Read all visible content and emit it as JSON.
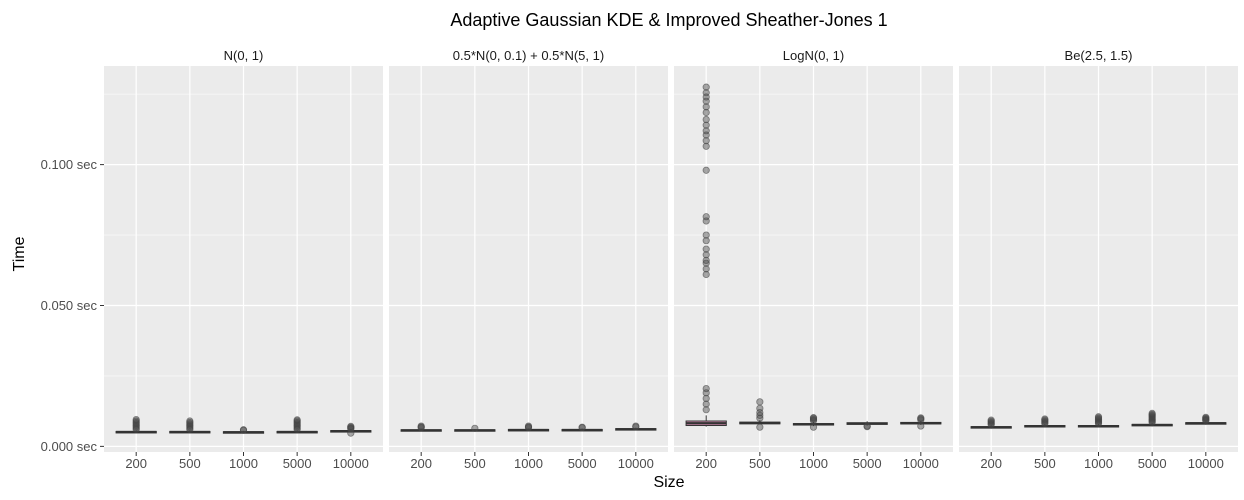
{
  "chart_data": {
    "type": "boxplot",
    "title": "Adaptive Gaussian KDE & Improved Sheather-Jones 1",
    "xlabel": "Size",
    "ylabel": "Time",
    "categories": [
      "200",
      "500",
      "1000",
      "5000",
      "10000"
    ],
    "y_ticks": [
      {
        "value": 0.0,
        "label": "0.000 sec"
      },
      {
        "value": 0.05,
        "label": "0.050 sec"
      },
      {
        "value": 0.1,
        "label": "0.100 sec"
      }
    ],
    "ylim": [
      -0.002,
      0.135
    ],
    "grid": true,
    "colors": {
      "panel_bg": "#ebebeb",
      "grid_major": "#ffffff",
      "box_fill": "#d98fb4",
      "box_line": "#333333",
      "outlier": "#444444"
    },
    "panels": [
      {
        "label": "N(0, 1)",
        "boxes": [
          {
            "q1": 0.0049,
            "median": 0.0051,
            "q3": 0.0053,
            "wmin": 0.0047,
            "wmax": 0.0057,
            "outliers": [
              0.006,
              0.0065,
              0.007,
              0.0075,
              0.008,
              0.0085,
              0.009,
              0.0095
            ]
          },
          {
            "q1": 0.0049,
            "median": 0.0051,
            "q3": 0.0053,
            "wmin": 0.0047,
            "wmax": 0.0057,
            "outliers": [
              0.006,
              0.0065,
              0.007,
              0.0075,
              0.008,
              0.0085,
              0.009
            ]
          },
          {
            "q1": 0.0049,
            "median": 0.005,
            "q3": 0.0052,
            "wmin": 0.0047,
            "wmax": 0.0055,
            "outliers": [
              0.0057,
              0.0059
            ]
          },
          {
            "q1": 0.0049,
            "median": 0.0051,
            "q3": 0.0053,
            "wmin": 0.0047,
            "wmax": 0.0057,
            "outliers": [
              0.006,
              0.0065,
              0.007,
              0.0075,
              0.008,
              0.0085,
              0.009,
              0.0094
            ]
          },
          {
            "q1": 0.0052,
            "median": 0.0054,
            "q3": 0.0056,
            "wmin": 0.0049,
            "wmax": 0.006,
            "outliers": [
              0.0047,
              0.0062,
              0.0065,
              0.0068,
              0.0071
            ]
          }
        ]
      },
      {
        "label": "0.5*N(0, 0.1) + 0.5*N(5, 1)",
        "boxes": [
          {
            "q1": 0.0055,
            "median": 0.0057,
            "q3": 0.0059,
            "wmin": 0.0053,
            "wmax": 0.0063,
            "outliers": [
              0.0066,
              0.0069,
              0.0072
            ]
          },
          {
            "q1": 0.0055,
            "median": 0.0057,
            "q3": 0.0059,
            "wmin": 0.0053,
            "wmax": 0.0061,
            "outliers": [
              0.0064
            ]
          },
          {
            "q1": 0.0056,
            "median": 0.0058,
            "q3": 0.006,
            "wmin": 0.0054,
            "wmax": 0.0063,
            "outliers": [
              0.0066,
              0.0069,
              0.0072
            ]
          },
          {
            "q1": 0.0056,
            "median": 0.0058,
            "q3": 0.006,
            "wmin": 0.0054,
            "wmax": 0.0063,
            "outliers": [
              0.0066,
              0.0068
            ]
          },
          {
            "q1": 0.0059,
            "median": 0.0061,
            "q3": 0.0063,
            "wmin": 0.0057,
            "wmax": 0.0066,
            "outliers": [
              0.0069,
              0.0072
            ]
          }
        ]
      },
      {
        "label": "LogN(0, 1)",
        "boxes": [
          {
            "q1": 0.0074,
            "median": 0.0082,
            "q3": 0.009,
            "wmin": 0.007,
            "wmax": 0.011,
            "outliers": [
              0.013,
              0.015,
              0.017,
              0.019,
              0.0205,
              0.061,
              0.063,
              0.065,
              0.066,
              0.068,
              0.07,
              0.073,
              0.075,
              0.08,
              0.0815,
              0.098,
              0.1065,
              0.1085,
              0.1105,
              0.112,
              0.114,
              0.116,
              0.1185,
              0.1205,
              0.1225,
              0.124,
              0.1255,
              0.1275
            ]
          },
          {
            "q1": 0.008,
            "median": 0.0083,
            "q3": 0.0086,
            "wmin": 0.0078,
            "wmax": 0.0093,
            "outliers": [
              0.0068,
              0.01,
              0.011,
              0.012,
              0.0135,
              0.0158
            ]
          },
          {
            "q1": 0.0076,
            "median": 0.0078,
            "q3": 0.0081,
            "wmin": 0.0072,
            "wmax": 0.0087,
            "outliers": [
              0.0068,
              0.0091,
              0.0095,
              0.0099,
              0.0102
            ]
          },
          {
            "q1": 0.0078,
            "median": 0.0081,
            "q3": 0.0084,
            "wmin": 0.0074,
            "wmax": 0.0089,
            "outliers": [
              0.007,
              0.0072
            ]
          },
          {
            "q1": 0.008,
            "median": 0.0082,
            "q3": 0.0085,
            "wmin": 0.0076,
            "wmax": 0.009,
            "outliers": [
              0.0072,
              0.0094,
              0.0098,
              0.0101
            ]
          }
        ]
      },
      {
        "label": "Be(2.5, 1.5)",
        "boxes": [
          {
            "q1": 0.0066,
            "median": 0.0068,
            "q3": 0.007,
            "wmin": 0.0063,
            "wmax": 0.0074,
            "outliers": [
              0.0077,
              0.0081,
              0.0085,
              0.0089,
              0.0093
            ]
          },
          {
            "q1": 0.007,
            "median": 0.0072,
            "q3": 0.0074,
            "wmin": 0.0067,
            "wmax": 0.0078,
            "outliers": [
              0.0081,
              0.0085,
              0.0089,
              0.0093,
              0.0097
            ]
          },
          {
            "q1": 0.007,
            "median": 0.0072,
            "q3": 0.0074,
            "wmin": 0.0067,
            "wmax": 0.0078,
            "outliers": [
              0.0081,
              0.0085,
              0.0089,
              0.0093,
              0.0097,
              0.0101,
              0.0105
            ]
          },
          {
            "q1": 0.0074,
            "median": 0.0076,
            "q3": 0.0078,
            "wmin": 0.0071,
            "wmax": 0.0082,
            "outliers": [
              0.0085,
              0.0089,
              0.0093,
              0.0097,
              0.0101,
              0.0105,
              0.0109,
              0.0113,
              0.0117
            ]
          },
          {
            "q1": 0.008,
            "median": 0.0082,
            "q3": 0.0084,
            "wmin": 0.0077,
            "wmax": 0.0088,
            "outliers": [
              0.0091,
              0.0094,
              0.0097,
              0.01,
              0.0103
            ]
          }
        ]
      }
    ]
  }
}
